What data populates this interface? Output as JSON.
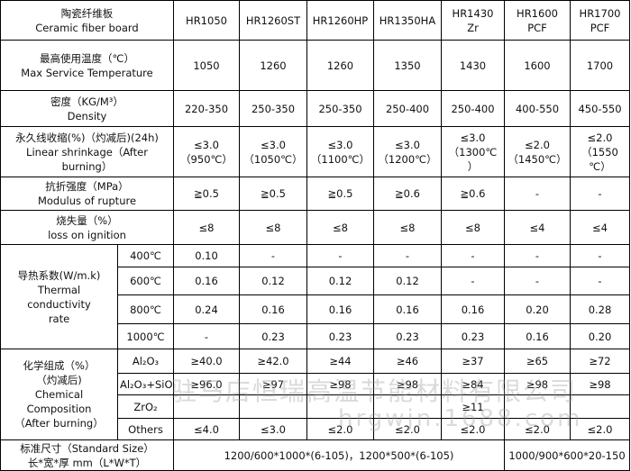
{
  "header": {
    "title_cn": "陶瓷纤维板",
    "title_en": "Ceramic fiber board",
    "products": [
      {
        "l1": "HR1050",
        "l2": ""
      },
      {
        "l1": "HR1260ST",
        "l2": ""
      },
      {
        "l1": "HR1260HP",
        "l2": ""
      },
      {
        "l1": "HR1350HA",
        "l2": ""
      },
      {
        "l1": "HR1430",
        "l2": "Zr"
      },
      {
        "l1": "HR1600",
        "l2": "PCF"
      },
      {
        "l1": "HR1700",
        "l2": "PCF"
      }
    ]
  },
  "rows": {
    "max_temp": {
      "cn": "最高使用温度（℃）",
      "en": "Max Service Temperature",
      "values": [
        "1050",
        "1260",
        "1260",
        "1350",
        "1430",
        "1600",
        "1700"
      ]
    },
    "density": {
      "cn": "密度（KG/M³）",
      "en": "Density",
      "values": [
        "220-350",
        "250-350",
        "250-350",
        "250-400",
        "250-400",
        "400-550",
        "450-550"
      ]
    },
    "shrinkage": {
      "cn": "永久线收缩(%)（灼减后)(24h)",
      "en1": "Linear shrinkage（After",
      "en2": "burning）",
      "values": [
        {
          "a": "≤3.0",
          "b": "（950℃）",
          "c": ""
        },
        {
          "a": "≤3.0",
          "b": "（1050℃）",
          "c": ""
        },
        {
          "a": "≤3.0",
          "b": "（1100℃）",
          "c": ""
        },
        {
          "a": "≤3.0",
          "b": "（1200℃）",
          "c": ""
        },
        {
          "a": "≤3.0",
          "b": "（1300℃",
          "c": "）"
        },
        {
          "a": "≤2.0",
          "b": "（1450℃）",
          "c": ""
        },
        {
          "a": "≤2.0",
          "b": "（1550",
          "c": "℃）"
        }
      ]
    },
    "rupture": {
      "cn": "抗折强度（MPa）",
      "en": "Modulus of rupture",
      "values": [
        "≧0.5",
        "≧0.5",
        "≧0.5",
        "≧0.6",
        "≧0.6",
        "-",
        "-"
      ]
    },
    "ignition": {
      "cn": "烧失量（%）",
      "en": "loss on ignition",
      "values": [
        "≤8",
        "≤8",
        "≤8",
        "≤8",
        "≤8",
        "≤4",
        "≤4"
      ]
    },
    "thermal": {
      "cn": "导热系数(W/m.k)",
      "en1": "Thermal",
      "en2": "conductivity",
      "en3": "rate",
      "sub": [
        {
          "temp": "400℃",
          "values": [
            "0.10",
            "-",
            "-",
            "-",
            "-",
            "-",
            "-"
          ]
        },
        {
          "temp": "600℃",
          "values": [
            "0.16",
            "0.12",
            "0.12",
            "0.12",
            "-",
            "-",
            "-"
          ]
        },
        {
          "temp": "800℃",
          "values": [
            "0.24",
            "0.16",
            "0.16",
            "0.16",
            "0.16",
            "0.20",
            "0.28"
          ]
        },
        {
          "temp": "1000℃",
          "values": [
            "-",
            "0.23",
            "0.23",
            "0.23",
            "0.23",
            "0.16",
            "0.20"
          ]
        }
      ]
    },
    "chemical": {
      "cn1": "化学组成（%）",
      "cn2": "（灼减后)",
      "en1": "Chemical",
      "en2": "Composition",
      "en3": "（After burning）",
      "sub": [
        {
          "label": "Al₂O₃",
          "values": [
            "≥40.0",
            "≥42.0",
            "≥44",
            "≥46",
            "≥37",
            "≥65",
            "≥72"
          ]
        },
        {
          "label": "Al₂O₃+SiO₂",
          "values": [
            "≥96.0",
            "≥97",
            "≥98",
            "≥98",
            "≥84",
            "≥98",
            "≥98"
          ]
        },
        {
          "label": "ZrO₂",
          "values": [
            "",
            "",
            "",
            "",
            "≥11",
            "",
            ""
          ]
        },
        {
          "label": "Others",
          "values": [
            "≤4.0",
            "≤3.0",
            "≤2.0",
            "≤2.0",
            "≤2.0",
            "≤2.0",
            "≤2.0"
          ]
        }
      ]
    },
    "size": {
      "cn": "标准尺寸（Standard Size）",
      "cn2": "长*宽*厚 mm（L*W*T）",
      "val1": "1200/600*1000*(6-105)，1200*500*(6-105)",
      "val2": "1000/900*600*20-150"
    }
  },
  "watermark": {
    "line1": "驻马店恒瑞高温节能材料有限公司",
    "line2": "hrgwjn.1688.com"
  }
}
